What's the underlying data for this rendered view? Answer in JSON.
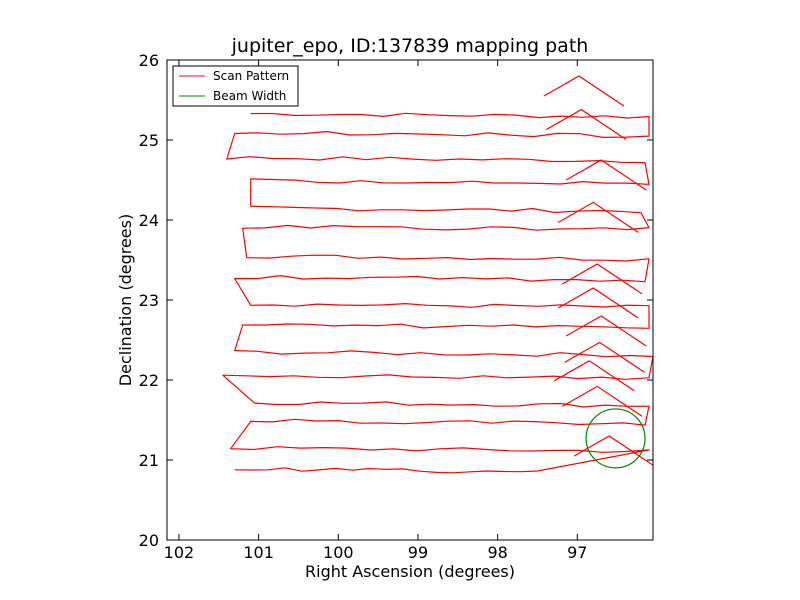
{
  "chart_data": {
    "type": "line",
    "title": "jupiter_epo, ID:137839 mapping path",
    "xlabel": "Right Ascension (degrees)",
    "ylabel": "Declination (degrees)",
    "xlim": [
      102.15,
      96.05
    ],
    "ylim": [
      20,
      26
    ],
    "x_inverted": true,
    "xticks": [
      102,
      101,
      100,
      99,
      98,
      97
    ],
    "yticks": [
      20,
      21,
      22,
      23,
      24,
      25,
      26
    ],
    "x_tick_labels": [
      "102",
      "101",
      "100",
      "99",
      "98",
      "97"
    ],
    "y_tick_labels": [
      "20",
      "21",
      "22",
      "23",
      "24",
      "25",
      "26"
    ],
    "grid": false,
    "legend": {
      "placement": "top-left",
      "entries": [
        {
          "label": "Scan Pattern",
          "color": "#ff0000"
        },
        {
          "label": "Beam Width",
          "color": "#008000"
        }
      ]
    },
    "scan_pattern": {
      "name": "Scan Pattern",
      "color": "#ff0000",
      "ra_west": 101.1,
      "ra_east": 96.1,
      "rows": [
        {
          "dec": 25.33,
          "west": 101.1,
          "east": 96.1
        },
        {
          "dec": 25.05,
          "west": 101.3,
          "east": 96.1
        },
        {
          "dec": 24.78,
          "west": 101.4,
          "east": 96.15
        },
        {
          "dec": 24.45,
          "west": 101.1,
          "east": 96.1
        },
        {
          "dec": 24.15,
          "west": 101.1,
          "east": 96.2
        },
        {
          "dec": 23.88,
          "west": 101.2,
          "east": 96.1
        },
        {
          "dec": 23.55,
          "west": 101.15,
          "east": 96.1
        },
        {
          "dec": 23.25,
          "west": 101.3,
          "east": 96.15
        },
        {
          "dec": 22.95,
          "west": 101.1,
          "east": 96.1
        },
        {
          "dec": 22.65,
          "west": 101.2,
          "east": 96.1
        },
        {
          "dec": 22.35,
          "west": 101.3,
          "east": 96.05
        },
        {
          "dec": 22.02,
          "west": 101.45,
          "east": 96.1
        },
        {
          "dec": 21.72,
          "west": 101.05,
          "east": 96.1
        },
        {
          "dec": 21.45,
          "west": 101.1,
          "east": 96.15
        },
        {
          "dec": 21.15,
          "west": 101.35,
          "east": 96.1
        },
        {
          "dec": 20.85,
          "west": 101.3,
          "east": 97.5
        }
      ],
      "turnaround_peaks": [
        {
          "ra": 96.98,
          "dec": 25.8
        },
        {
          "ra": 96.95,
          "dec": 25.38
        },
        {
          "ra": 96.7,
          "dec": 24.75
        },
        {
          "ra": 96.8,
          "dec": 24.22
        },
        {
          "ra": 96.75,
          "dec": 23.45
        },
        {
          "ra": 96.8,
          "dec": 23.15
        },
        {
          "ra": 96.7,
          "dec": 22.8
        },
        {
          "ra": 96.72,
          "dec": 22.47
        },
        {
          "ra": 96.85,
          "dec": 22.24
        },
        {
          "ra": 96.75,
          "dec": 21.92
        },
        {
          "ra": 96.6,
          "dec": 21.3
        }
      ]
    },
    "beam_width": {
      "name": "Beam Width",
      "color": "#008000",
      "center_ra": 96.52,
      "center_dec": 21.27,
      "radius_deg": 0.37
    }
  }
}
